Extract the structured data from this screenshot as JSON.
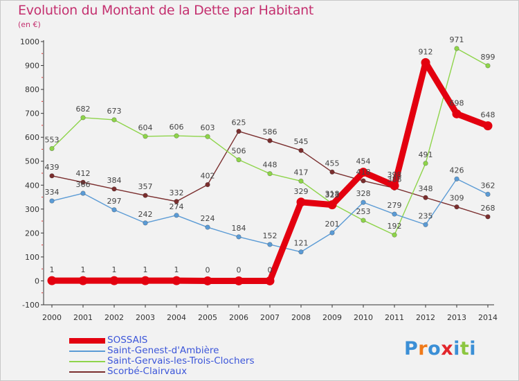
{
  "header": {
    "title": "Evolution du Montant de la Dette par Habitant",
    "subtitle": "(en €)"
  },
  "logo": {
    "text": "Proxiti",
    "letter_colors": [
      "#3b8fd6",
      "#f07a1a",
      "#3b8fd6",
      "#e2262b",
      "#3b8fd6",
      "#8cc63f",
      "#3b8fd6"
    ]
  },
  "chart_data": {
    "type": "line",
    "x": [
      "2000",
      "2001",
      "2002",
      "2003",
      "2004",
      "2005",
      "2006",
      "2007",
      "2008",
      "2009",
      "2010",
      "2011",
      "2012",
      "2013",
      "2014"
    ],
    "y_ticks": [
      "-100",
      "0",
      "100",
      "200",
      "300",
      "400",
      "500",
      "600",
      "700",
      "800",
      "900",
      "1000"
    ],
    "ylim": [
      -100,
      1000
    ],
    "grid": false,
    "legend_position": "bottom",
    "series": [
      {
        "name": "SOSSAIS",
        "color": "#e3000f",
        "values": [
          1,
          1,
          1,
          1,
          1,
          0,
          0,
          0,
          329,
          318,
          454,
          398,
          912,
          698,
          648
        ],
        "labels": [
          "1",
          "1",
          "1",
          "1",
          "1",
          "0",
          "0",
          "0",
          "329",
          "318",
          "454",
          "398",
          "912",
          "698",
          "648"
        ]
      },
      {
        "name": "Saint-Genest-d'Ambière",
        "color": "#5b9bd5",
        "values": [
          334,
          366,
          297,
          242,
          274,
          224,
          184,
          152,
          121,
          201,
          328,
          279,
          235,
          426,
          362
        ],
        "labels": [
          "334",
          "366",
          "297",
          "242",
          "274",
          "224",
          "184",
          "152",
          "121",
          "201",
          "328",
          "279",
          "235",
          "426",
          "362"
        ]
      },
      {
        "name": "Saint-Gervais-les-Trois-Clochers",
        "color": "#8ed44a",
        "values": [
          553,
          682,
          673,
          604,
          606,
          603,
          506,
          448,
          417,
          323,
          253,
          192,
          491,
          971,
          899
        ],
        "labels": [
          "553",
          "682",
          "673",
          "604",
          "606",
          "603",
          "506",
          "448",
          "417",
          "323",
          "253",
          "192",
          "491",
          "971",
          "899"
        ]
      },
      {
        "name": "Scorbé-Clairvaux",
        "color": "#7a2e2e",
        "values": [
          439,
          412,
          384,
          357,
          332,
          402,
          625,
          586,
          545,
          455,
          418,
          388,
          348,
          309,
          268
        ],
        "labels": [
          "439",
          "412",
          "384",
          "357",
          "332",
          "402",
          "625",
          "586",
          "545",
          "455",
          "418",
          "388",
          "348",
          "309",
          "268"
        ]
      }
    ]
  }
}
